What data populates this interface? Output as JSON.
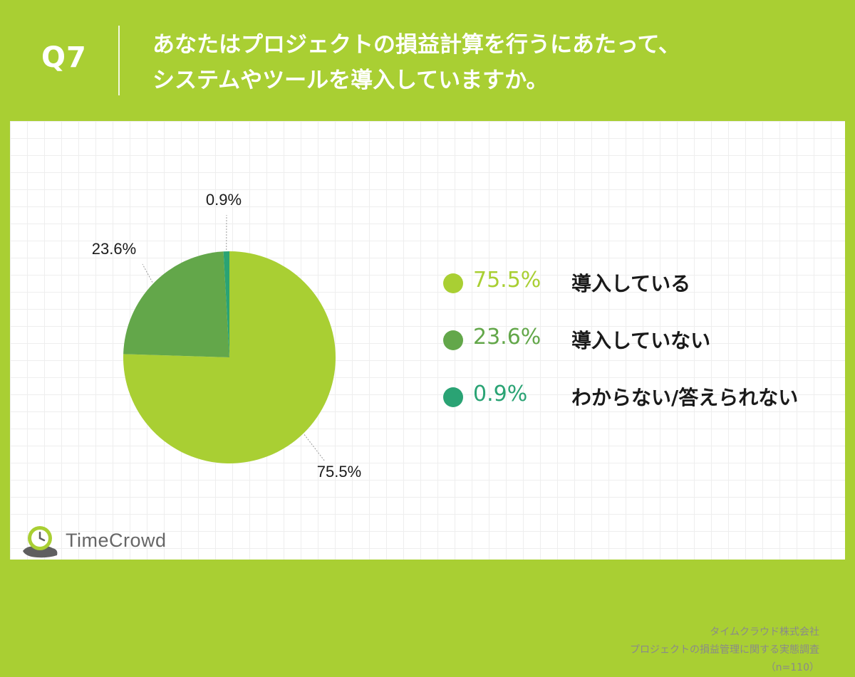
{
  "header": {
    "question_number": "Q7",
    "question_line1": "あなたはプロジェクトの損益計算を行うにあたって、",
    "question_line2": "システムやツールを導入していますか。"
  },
  "chart_data": {
    "type": "pie",
    "title": "",
    "slices": [
      {
        "label": "導入している",
        "value": 75.5,
        "display": "75.5%",
        "color": "#a9cf33"
      },
      {
        "label": "導入していない",
        "value": 23.6,
        "display": "23.6%",
        "color": "#63a74a"
      },
      {
        "label": "わからない/答えられない",
        "value": 0.9,
        "display": "0.9%",
        "color": "#2aa374"
      }
    ],
    "legend_position": "right"
  },
  "footer": {
    "brand_name": "TimeCrowd",
    "source_line1": "タイムクラウド株式会社",
    "source_line2": "プロジェクトの損益管理に関する実態調査",
    "source_line3": "（n=110）"
  }
}
